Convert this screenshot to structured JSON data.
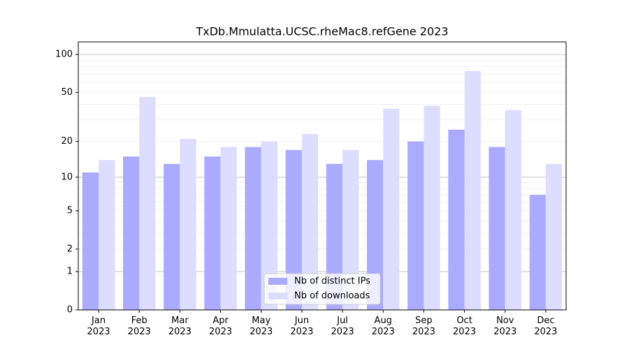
{
  "chart_data": {
    "type": "bar",
    "title": "TxDb.Mmulatta.UCSC.rheMac8.refGene 2023",
    "categories": [
      "Jan\n2023",
      "Feb\n2023",
      "Mar\n2023",
      "Apr\n2023",
      "May\n2023",
      "Jun\n2023",
      "Jul\n2023",
      "Aug\n2023",
      "Sep\n2023",
      "Oct\n2023",
      "Nov\n2023",
      "Dec\n2023"
    ],
    "series": [
      {
        "name": "Nb of distinct IPs",
        "color": "#aaaaff",
        "values": [
          11,
          15,
          13,
          15,
          18,
          17,
          13,
          14,
          20,
          25,
          18,
          7
        ]
      },
      {
        "name": "Nb of downloads",
        "color": "#ddddff",
        "values": [
          14,
          46,
          21,
          18,
          20,
          23,
          17,
          37,
          39,
          74,
          36,
          13
        ]
      }
    ],
    "yscale": "log1p",
    "ylim": [
      0,
      126
    ],
    "yticks": [
      0,
      1,
      2,
      5,
      10,
      20,
      50,
      100
    ],
    "major_grid": [
      1,
      10,
      100
    ],
    "minor_grid": [
      2,
      3,
      4,
      5,
      6,
      7,
      8,
      9,
      20,
      30,
      40,
      50,
      60,
      70,
      80,
      90
    ],
    "legend": "lower center"
  }
}
